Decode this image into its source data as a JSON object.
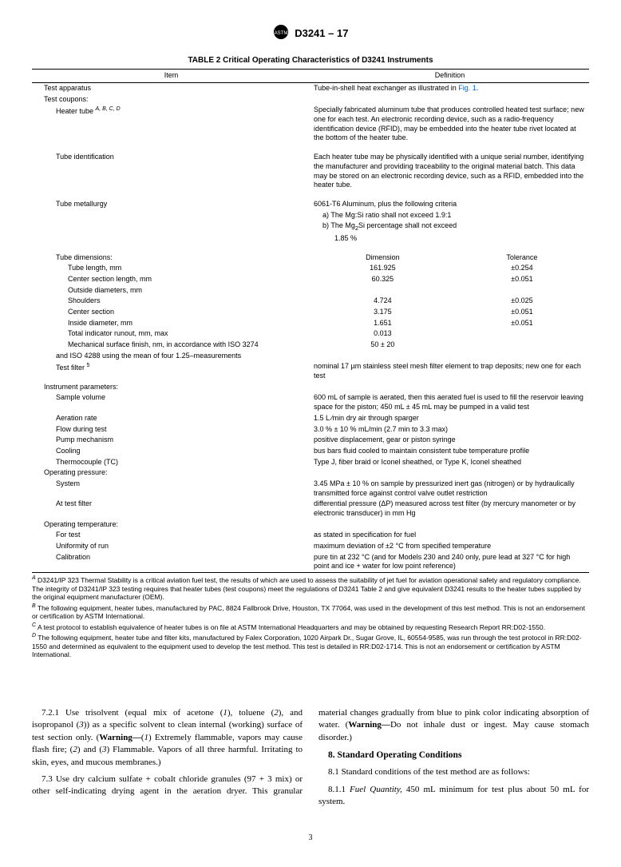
{
  "doc_header": "D3241 – 17",
  "table_title": "TABLE 2 Critical Operating Characteristics of D3241 Instruments",
  "header_cells": [
    "Item",
    "Definition"
  ],
  "rows": [
    {
      "item": "Test apparatus",
      "def": "Tube-in-shell heat exchanger as illustrated in ",
      "figref": "Fig. 1",
      "deftail": ".",
      "indent": 1
    },
    {
      "item": "Test coupons:",
      "def": "",
      "indent": 1
    },
    {
      "item_html": "Heater tube <sup><em>A, B, C, D</em></sup>",
      "def": "Specially fabricated aluminum tube that produces controlled heated test surface; new one for each test. An electronic recording device, such as a radio-frequency identification device (RFID), may be embedded into the heater tube rivet located at the bottom of the heater tube.",
      "indent": 2,
      "spacer_after": true
    },
    {
      "item": "Tube identification",
      "def": "Each heater tube may be physically identified with a unique serial number, identifying the manufacturer and providing traceability to the original material batch. This data may be stored on an electronic recording device, such as a RFID, embedded into the heater tube.",
      "indent": 2,
      "spacer_after": true
    },
    {
      "item": "Tube metallurgy",
      "def": "6061-T6 Aluminum, plus the following criteria",
      "indent": 2
    },
    {
      "item": "",
      "def": "a) The Mg:Si ratio shall not exceed 1.9:1",
      "indent": 2,
      "defindent": true
    },
    {
      "item": "",
      "def_html": "b) The Mg<sub>2</sub>Si percentage shall not exceed",
      "indent": 2,
      "defindent": true
    },
    {
      "item": "",
      "def": "1.85 %",
      "indent": 2,
      "defindent2": true,
      "spacer_after": true
    },
    {
      "item": "Tube dimensions:",
      "dim": "Dimension",
      "tol": "Tolerance",
      "indent": 2,
      "is_dim_header": true
    },
    {
      "item": "Tube length, mm",
      "dim": "161.925",
      "tol": "±0.254",
      "indent": 3
    },
    {
      "item": "Center section length, mm",
      "dim": "60.325",
      "tol": "±0.051",
      "indent": 3
    },
    {
      "item": "Outside diameters, mm",
      "dim": "",
      "tol": "",
      "indent": 3
    },
    {
      "item": "Shoulders",
      "dim": "4.724",
      "tol": "±0.025",
      "indent": 4
    },
    {
      "item": "Center section",
      "dim": "3.175",
      "tol": "±0.051",
      "indent": 4
    },
    {
      "item": "Inside diameter, mm",
      "dim": "1.651",
      "tol": "±0.051",
      "indent": 3
    },
    {
      "item": "Total indicator runout, mm, max",
      "dim": "0.013",
      "tol": "",
      "indent": 3
    },
    {
      "item": "Mechanical surface finish, nm, in accordance with ISO 3274",
      "dim": "50 ± 20",
      "tol": "",
      "indent": 3
    },
    {
      "item": "and ISO 4288 using the mean of four 1.25–measurements",
      "dim": "",
      "tol": "",
      "indent": 2
    },
    {
      "item_html": "Test filter <sup>5</sup>",
      "def": "nominal 17 µm stainless steel mesh filter element to trap deposits; new one for each test",
      "indent": 2
    },
    {
      "item": "Instrument parameters:",
      "def": "",
      "indent": 1
    },
    {
      "item": "Sample volume",
      "def": "600 mL of sample is aerated, then this aerated fuel is used to fill the reservoir leaving space for the piston; 450 mL ± 45 mL may be pumped in a valid test",
      "indent": 2
    },
    {
      "item": "Aeration rate",
      "def": "1.5 L ⁄min dry air through sparger",
      "indent": 2
    },
    {
      "item": "Flow during test",
      "def": "3.0 % ± 10 % mL/min (2.7 min to 3.3 max)",
      "indent": 2
    },
    {
      "item": "Pump mechanism",
      "def": "positive displacement, gear or piston syringe",
      "indent": 2
    },
    {
      "item": "Cooling",
      "def": "bus bars fluid cooled to maintain consistent tube temperature profile",
      "indent": 2
    },
    {
      "item": "Thermocouple (TC)",
      "def": "Type J, fiber braid or Iconel sheathed, or Type K, Iconel sheathed",
      "indent": 2
    },
    {
      "item": "Operating pressure:",
      "def": "",
      "indent": 1
    },
    {
      "item": "System",
      "def": "3.45 MPa ± 10 % on sample by pressurized inert gas (nitrogen) or by hydraulically transmitted force against control valve outlet restriction",
      "indent": 2
    },
    {
      "item": "At test filter",
      "def": "differential pressure (ΔP) measured across test filter (by mercury manometer or by electronic transducer) in mm Hg",
      "indent": 2
    },
    {
      "item": "Operating temperature:",
      "def": "",
      "indent": 1
    },
    {
      "item": "For test",
      "def": "as stated in specification for fuel",
      "indent": 2
    },
    {
      "item": "Uniformity of run",
      "def": "maximum deviation of ±2 °C from specified temperature",
      "indent": 2
    },
    {
      "item": "Calibration",
      "def": "pure tin at 232 °C (and for Models 230 and 240 only, pure lead at 327 °C for high point and ice + water for low point reference)",
      "indent": 2
    }
  ],
  "footnotes": [
    {
      "sup": "A",
      "text": "D3241/IP 323 Thermal Stability is a critical aviation fuel test, the results of which are used to assess the suitability of jet fuel for aviation operational safety and regulatory compliance. The integrity of D3241/IP 323 testing requires that heater tubes (test coupons) meet the regulations of D3241 Table 2 and give equivalent D3241 results to the heater tubes supplied by the original equipment manufacturer (OEM)."
    },
    {
      "sup": "B",
      "text": "The following equipment, heater tubes, manufactured by PAC, 8824 Fallbrook Drive, Houston, TX 77064, was used in the development of this test method. This is not an endorsement or certification by ASTM International."
    },
    {
      "sup": "C",
      "text": "A test protocol to establish equivalence of heater tubes is on file at ASTM International Headquarters and may be obtained by requesting Research Report RR:D02-1550."
    },
    {
      "sup": "D",
      "text": "The following equipment, heater tube and filter kits, manufactured by Falex Corporation, 1020 Airpark Dr., Sugar Grove, IL, 60554-9585, was run through the test protocol in RR:D02-1550 and determined as equivalent to the equipment used to develop the test method. This test is detailed in RR:D02-1714. This is not an endorsement or certification by ASTM International."
    }
  ],
  "body_paragraphs": {
    "p1_html": "7.2.1 Use trisolvent (equal mix of acetone (<em>1</em>), toluene (<em>2</em>), and isopropanol (<em>3</em>)) as a specific solvent to clean internal (working) surface of test section only. (<strong>Warning—</strong>(<em>1</em>) Extremely flammable, vapors may cause flash fire; (<em>2</em>) and (<em>3</em>) Flammable. Vapors of all three harmful. Irritating to skin, eyes, and mucous membranes.)",
    "p2_html": "7.3 Use dry calcium sulfate + cobalt chloride granules (97 + 3 mix) or other self-indicating drying agent in the aeration dryer. This granular material changes gradually from blue to pink color indicating absorption of water. (<strong>Warning—</strong>Do not inhale dust or ingest. May cause stomach disorder.)",
    "section_heading": "8. Standard Operating Conditions",
    "p3": "8.1 Standard conditions of the test method are as follows:",
    "p4_html": "8.1.1 <em>Fuel Quantity,</em> 450 mL minimum for test plus about 50 mL for system."
  },
  "page_number": "3"
}
